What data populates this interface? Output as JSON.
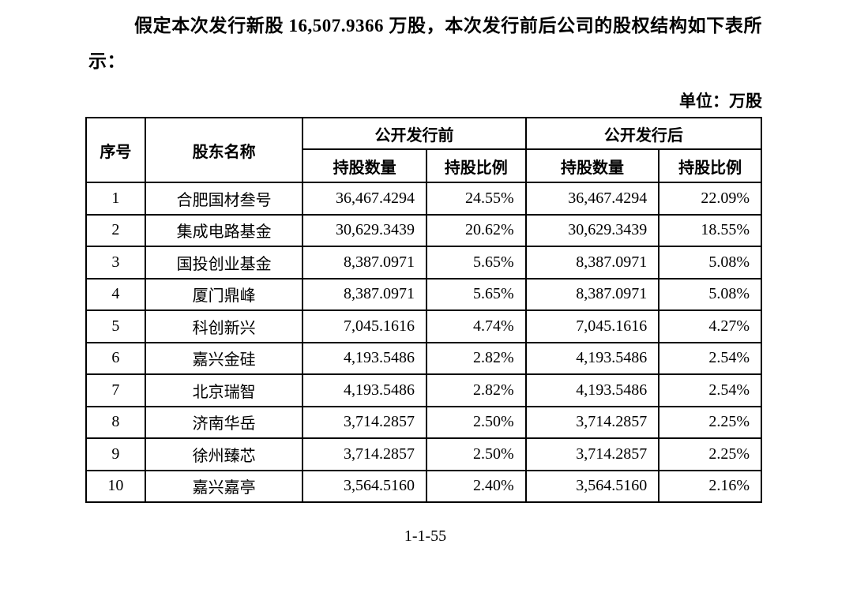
{
  "document": {
    "intro_paragraph": "假定本次发行新股 16,507.9366 万股，本次发行前后公司的股权结构如下表所示：",
    "unit_note": "单位：万股",
    "page_number": "1-1-55"
  },
  "table": {
    "headers": {
      "seq": "序号",
      "shareholder_name": "股东名称",
      "pre_offering": "公开发行前",
      "post_offering": "公开发行后",
      "shares_held": "持股数量",
      "share_ratio": "持股比例"
    },
    "rows": [
      {
        "seq": "1",
        "name": "合肥国材叁号",
        "qty_before": "36,467.4294",
        "ratio_before": "24.55%",
        "qty_after": "36,467.4294",
        "ratio_after": "22.09%"
      },
      {
        "seq": "2",
        "name": "集成电路基金",
        "qty_before": "30,629.3439",
        "ratio_before": "20.62%",
        "qty_after": "30,629.3439",
        "ratio_after": "18.55%"
      },
      {
        "seq": "3",
        "name": "国投创业基金",
        "qty_before": "8,387.0971",
        "ratio_before": "5.65%",
        "qty_after": "8,387.0971",
        "ratio_after": "5.08%"
      },
      {
        "seq": "4",
        "name": "厦门鼎峰",
        "qty_before": "8,387.0971",
        "ratio_before": "5.65%",
        "qty_after": "8,387.0971",
        "ratio_after": "5.08%"
      },
      {
        "seq": "5",
        "name": "科创新兴",
        "qty_before": "7,045.1616",
        "ratio_before": "4.74%",
        "qty_after": "7,045.1616",
        "ratio_after": "4.27%"
      },
      {
        "seq": "6",
        "name": "嘉兴金硅",
        "qty_before": "4,193.5486",
        "ratio_before": "2.82%",
        "qty_after": "4,193.5486",
        "ratio_after": "2.54%"
      },
      {
        "seq": "7",
        "name": "北京瑞智",
        "qty_before": "4,193.5486",
        "ratio_before": "2.82%",
        "qty_after": "4,193.5486",
        "ratio_after": "2.54%"
      },
      {
        "seq": "8",
        "name": "济南华岳",
        "qty_before": "3,714.2857",
        "ratio_before": "2.50%",
        "qty_after": "3,714.2857",
        "ratio_after": "2.25%"
      },
      {
        "seq": "9",
        "name": "徐州臻芯",
        "qty_before": "3,714.2857",
        "ratio_before": "2.50%",
        "qty_after": "3,714.2857",
        "ratio_after": "2.25%"
      },
      {
        "seq": "10",
        "name": "嘉兴嘉亭",
        "qty_before": "3,564.5160",
        "ratio_before": "2.40%",
        "qty_after": "3,564.5160",
        "ratio_after": "2.16%"
      }
    ]
  },
  "colors": {
    "text": "#000000",
    "border": "#000000",
    "page_background": "#ffffff"
  }
}
